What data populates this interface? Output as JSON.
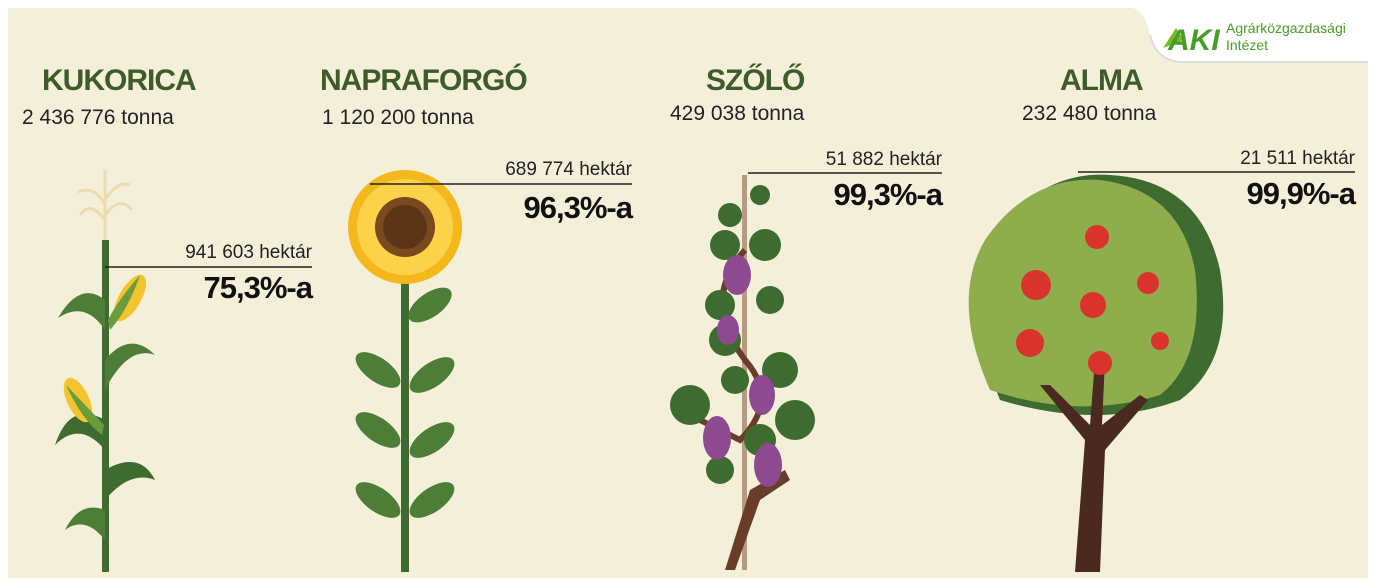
{
  "logo": {
    "mark": "AKI",
    "line1": "Agrárközgazdasági",
    "line2": "Intézet"
  },
  "crops": [
    {
      "name": "KUKORICA",
      "production": "2 436 776 tonna",
      "area": "941 603 hektár",
      "share": "75,3%-a"
    },
    {
      "name": "NAPRAFORGÓ",
      "production": "1 120 200 tonna",
      "area": "689 774 hektár",
      "share": "96,3%-a"
    },
    {
      "name": "SZŐLŐ",
      "production": "429 038 tonna",
      "area": "51 882 hektár",
      "share": "99,3%-a"
    },
    {
      "name": "ALMA",
      "production": "232 480 tonna",
      "area": "21 511 hektár",
      "share": "99,9%-a"
    }
  ]
}
